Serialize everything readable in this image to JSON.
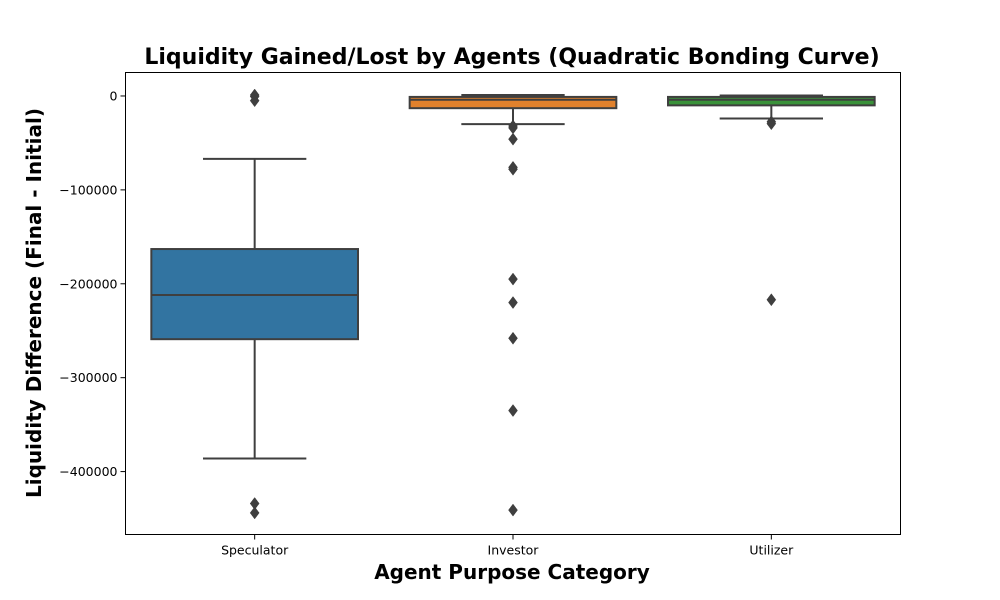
{
  "chart_data": {
    "type": "box",
    "title": "Liquidity Gained/Lost by Agents (Quadratic Bonding Curve)",
    "xlabel": "Agent Purpose Category",
    "ylabel": "Liquidity Difference (Final - Initial)",
    "ylim": [
      -467000,
      25000
    ],
    "yticks": [
      0,
      -100000,
      -200000,
      -300000,
      -400000
    ],
    "ytick_labels": [
      "0",
      "−100000",
      "−200000",
      "−300000",
      "−400000"
    ],
    "grid": false,
    "legend": "none",
    "categories": [
      "Speculator",
      "Investor",
      "Utilizer"
    ],
    "boxes": [
      {
        "category": "Speculator",
        "color": "#3274a1",
        "whisker_high": -67000,
        "q3": -163000,
        "median": -212000,
        "q1": -259000,
        "whisker_low": -386000,
        "outliers": [
          1000,
          -500,
          -5000,
          -434000,
          -444000
        ]
      },
      {
        "category": "Investor",
        "color": "#e1812c",
        "whisker_high": 1000,
        "q3": -1000,
        "median": -4000,
        "q1": -13000,
        "whisker_low": -30000,
        "outliers": [
          -32000,
          -34000,
          -46000,
          -76000,
          -78000,
          -195000,
          -220000,
          -258000,
          -335000,
          -441000
        ]
      },
      {
        "category": "Utilizer",
        "color": "#3a923a",
        "whisker_high": 500,
        "q3": -1000,
        "median": -4000,
        "q1": -10000,
        "whisker_low": -24000,
        "outliers": [
          -27500,
          -29500,
          -217000
        ]
      }
    ]
  }
}
